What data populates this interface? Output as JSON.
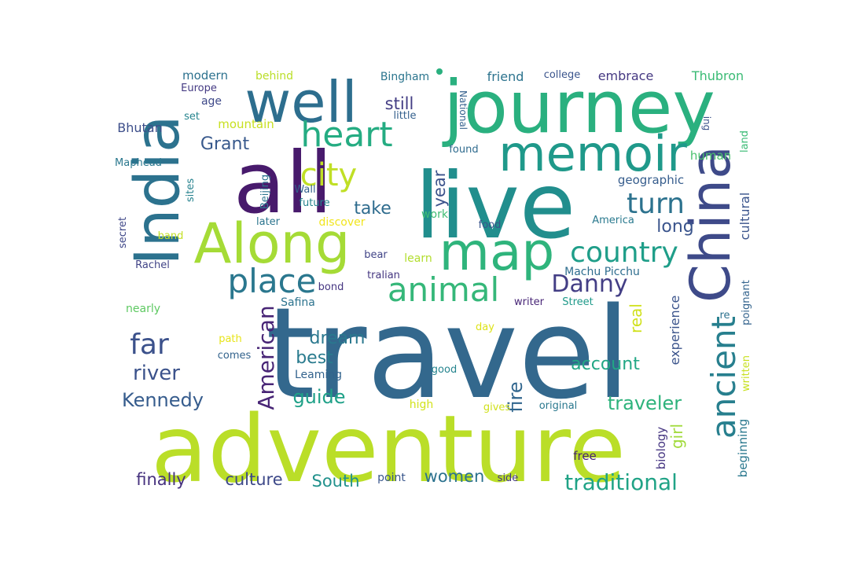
{
  "words": [
    {
      "text": "travel",
      "color": "#33688d",
      "weight": 1.0,
      "vertical": false
    },
    {
      "text": "adventure",
      "color": "#bade28",
      "weight": 0.82,
      "vertical": false
    },
    {
      "text": "live",
      "color": "#218e8d",
      "weight": 0.78,
      "vertical": false
    },
    {
      "text": "all",
      "color": "#481a6c",
      "weight": 0.75,
      "vertical": false
    },
    {
      "text": "journey",
      "color": "#2ab07f",
      "weight": 0.64,
      "vertical": false
    },
    {
      "text": "India",
      "color": "#2c728e",
      "weight": 0.55,
      "vertical": true
    },
    {
      "text": "well",
      "color": "#2d6e8e",
      "weight": 0.5,
      "vertical": false
    },
    {
      "text": "Along",
      "color": "#a5db36",
      "weight": 0.5,
      "vertical": false
    },
    {
      "text": "China",
      "color": "#3e4a89",
      "weight": 0.5,
      "vertical": true
    },
    {
      "text": "map",
      "color": "#2fb47c",
      "weight": 0.48,
      "vertical": false
    },
    {
      "text": "memoir",
      "color": "#1f998a",
      "weight": 0.45,
      "vertical": false
    },
    {
      "text": "heart",
      "color": "#25ac82",
      "weight": 0.33,
      "vertical": false
    },
    {
      "text": "place",
      "color": "#2a778e",
      "weight": 0.3,
      "vertical": false
    },
    {
      "text": "animal",
      "color": "#35b779",
      "weight": 0.3,
      "vertical": false
    },
    {
      "text": "ancient",
      "color": "#277f8e",
      "weight": 0.3,
      "vertical": true
    },
    {
      "text": "city",
      "color": "#c0df25",
      "weight": 0.3,
      "vertical": false
    },
    {
      "text": "country",
      "color": "#1f9e89",
      "weight": 0.26,
      "vertical": false
    },
    {
      "text": "turn",
      "color": "#2c728e",
      "weight": 0.26,
      "vertical": false
    },
    {
      "text": "far",
      "color": "#3b518b",
      "weight": 0.26,
      "vertical": false
    },
    {
      "text": "Danny",
      "color": "#433e85",
      "weight": 0.22,
      "vertical": false
    },
    {
      "text": "American",
      "color": "#482576",
      "weight": 0.21,
      "vertical": true
    },
    {
      "text": "traditional",
      "color": "#20a386",
      "weight": 0.2,
      "vertical": false
    },
    {
      "text": "river",
      "color": "#3b528b",
      "weight": 0.18,
      "vertical": false
    },
    {
      "text": "Kennedy",
      "color": "#365c8d",
      "weight": 0.17,
      "vertical": false
    },
    {
      "text": "guide",
      "color": "#1fa188",
      "weight": 0.17,
      "vertical": false
    },
    {
      "text": "traveler",
      "color": "#2eb37c",
      "weight": 0.16,
      "vertical": false
    },
    {
      "text": "account",
      "color": "#22a785",
      "weight": 0.16,
      "vertical": false
    },
    {
      "text": "dream",
      "color": "#2a788e",
      "weight": 0.16,
      "vertical": false
    },
    {
      "text": "best",
      "color": "#297b8e",
      "weight": 0.16,
      "vertical": false
    },
    {
      "text": "fire",
      "color": "#31668e",
      "weight": 0.16,
      "vertical": true
    },
    {
      "text": "take",
      "color": "#2f6c8e",
      "weight": 0.15,
      "vertical": false
    },
    {
      "text": "long",
      "color": "#3a548c",
      "weight": 0.15,
      "vertical": false
    },
    {
      "text": "Grant",
      "color": "#38598c",
      "weight": 0.15,
      "vertical": false
    },
    {
      "text": "still",
      "color": "#433d84",
      "weight": 0.14,
      "vertical": false
    },
    {
      "text": "year",
      "color": "#3b528b",
      "weight": 0.14,
      "vertical": true
    },
    {
      "text": "culture",
      "color": "#3e4989",
      "weight": 0.14,
      "vertical": false
    },
    {
      "text": "South",
      "color": "#21918c",
      "weight": 0.14,
      "vertical": false
    },
    {
      "text": "women",
      "color": "#2c728e",
      "weight": 0.14,
      "vertical": false
    },
    {
      "text": "finally",
      "color": "#46327e",
      "weight": 0.14,
      "vertical": false
    },
    {
      "text": "girl",
      "color": "#a0da39",
      "weight": 0.12,
      "vertical": true
    },
    {
      "text": "real",
      "color": "#d0e11c",
      "weight": 0.12,
      "vertical": true
    },
    {
      "text": "experience",
      "color": "#3a538b",
      "weight": 0.09,
      "vertical": true
    },
    {
      "text": "cultural",
      "color": "#3a548c",
      "weight": 0.09,
      "vertical": true
    },
    {
      "text": "beginning",
      "color": "#2a788e",
      "weight": 0.09,
      "vertical": true
    },
    {
      "text": "biology",
      "color": "#453581",
      "weight": 0.09,
      "vertical": true
    },
    {
      "text": "free",
      "color": "#482475",
      "weight": 0.09,
      "vertical": false
    },
    {
      "text": "geographic",
      "color": "#365d8d",
      "weight": 0.09,
      "vertical": false
    },
    {
      "text": "human",
      "color": "#4ac16d",
      "weight": 0.09,
      "vertical": false
    },
    {
      "text": "Thubron",
      "color": "#3bbb75",
      "weight": 0.09,
      "vertical": false
    },
    {
      "text": "embrace",
      "color": "#453882",
      "weight": 0.09,
      "vertical": false
    },
    {
      "text": "friend",
      "color": "#2c738e",
      "weight": 0.09,
      "vertical": false
    },
    {
      "text": "modern",
      "color": "#2c718e",
      "weight": 0.09,
      "vertical": false
    },
    {
      "text": "Bhutan",
      "color": "#3d4e8a",
      "weight": 0.09,
      "vertical": false
    },
    {
      "text": "mountain",
      "color": "#c8e020",
      "weight": 0.09,
      "vertical": false
    },
    {
      "text": "Bingham",
      "color": "#2b758e",
      "weight": 0.08,
      "vertical": false
    },
    {
      "text": "Machu Picchu",
      "color": "#2e6d8e",
      "weight": 0.08,
      "vertical": false
    },
    {
      "text": "Leaming",
      "color": "#33638d",
      "weight": 0.08,
      "vertical": false
    },
    {
      "text": "discover",
      "color": "#f1e51d",
      "weight": 0.08,
      "vertical": false
    },
    {
      "text": "Safina",
      "color": "#2c738e",
      "weight": 0.08,
      "vertical": false
    },
    {
      "text": "high",
      "color": "#d2e21b",
      "weight": 0.08,
      "vertical": false
    },
    {
      "text": "point",
      "color": "#39568c",
      "weight": 0.08,
      "vertical": false
    },
    {
      "text": "work",
      "color": "#3fbc73",
      "weight": 0.08,
      "vertical": false
    },
    {
      "text": "learn",
      "color": "#b2dd2d",
      "weight": 0.08,
      "vertical": false
    },
    {
      "text": "writer",
      "color": "#482677",
      "weight": 0.07,
      "vertical": false
    },
    {
      "text": "Street",
      "color": "#1f9a8a",
      "weight": 0.07,
      "vertical": false
    },
    {
      "text": "Wall",
      "color": "#34618d",
      "weight": 0.07,
      "vertical": false
    },
    {
      "text": "future",
      "color": "#25848e",
      "weight": 0.07,
      "vertical": false
    },
    {
      "text": "Beijing",
      "color": "#2b748e",
      "weight": 0.07,
      "vertical": true
    },
    {
      "text": "America",
      "color": "#29798e",
      "weight": 0.07,
      "vertical": false
    },
    {
      "text": "food",
      "color": "#3a548c",
      "weight": 0.07,
      "vertical": false
    },
    {
      "text": "found",
      "color": "#2f6b8e",
      "weight": 0.07,
      "vertical": false
    },
    {
      "text": "behind",
      "color": "#bade28",
      "weight": 0.07,
      "vertical": false
    },
    {
      "text": "Europe",
      "color": "#443a83",
      "weight": 0.07,
      "vertical": false
    },
    {
      "text": "age",
      "color": "#3e4989",
      "weight": 0.07,
      "vertical": false
    },
    {
      "text": "set",
      "color": "#25848e",
      "weight": 0.07,
      "vertical": false
    },
    {
      "text": "Maphead",
      "color": "#2a788e",
      "weight": 0.07,
      "vertical": false
    },
    {
      "text": "sites",
      "color": "#26828e",
      "weight": 0.07,
      "vertical": true
    },
    {
      "text": "secret",
      "color": "#3f4788",
      "weight": 0.07,
      "vertical": true
    },
    {
      "text": "band",
      "color": "#c2df23",
      "weight": 0.07,
      "vertical": false
    },
    {
      "text": "Rachel",
      "color": "#414487",
      "weight": 0.07,
      "vertical": false
    },
    {
      "text": "nearly",
      "color": "#5ec962",
      "weight": 0.07,
      "vertical": false
    },
    {
      "text": "later",
      "color": "#2b748e",
      "weight": 0.07,
      "vertical": false
    },
    {
      "text": "bear",
      "color": "#414487",
      "weight": 0.07,
      "vertical": false
    },
    {
      "text": "tralian",
      "color": "#453781",
      "weight": 0.07,
      "vertical": false
    },
    {
      "text": "bond",
      "color": "#453581",
      "weight": 0.07,
      "vertical": false
    },
    {
      "text": "path",
      "color": "#e7e419",
      "weight": 0.07,
      "vertical": false
    },
    {
      "text": "comes",
      "color": "#33638d",
      "weight": 0.07,
      "vertical": false
    },
    {
      "text": "good",
      "color": "#25848e",
      "weight": 0.07,
      "vertical": false
    },
    {
      "text": "gives",
      "color": "#d0e11c",
      "weight": 0.07,
      "vertical": false
    },
    {
      "text": "original",
      "color": "#2a788e",
      "weight": 0.07,
      "vertical": false
    },
    {
      "text": "side",
      "color": "#453882",
      "weight": 0.07,
      "vertical": false
    },
    {
      "text": "day",
      "color": "#dde318",
      "weight": 0.07,
      "vertical": false
    },
    {
      "text": "college",
      "color": "#3a548c",
      "weight": 0.06,
      "vertical": false
    },
    {
      "text": "little",
      "color": "#34608d",
      "weight": 0.06,
      "vertical": false
    },
    {
      "text": "National",
      "color": "#34608d",
      "weight": 0.06,
      "vertical": true
    },
    {
      "text": "ing",
      "color": "#3b528b",
      "weight": 0.06,
      "vertical": true
    },
    {
      "text": "land",
      "color": "#3bbb75",
      "weight": 0.06,
      "vertical": true
    },
    {
      "text": "re",
      "color": "#2c718e",
      "weight": 0.06,
      "vertical": false
    },
    {
      "text": "poignant",
      "color": "#33638d",
      "weight": 0.06,
      "vertical": true
    },
    {
      "text": "written",
      "color": "#c8e020",
      "weight": 0.06,
      "vertical": true
    }
  ]
}
